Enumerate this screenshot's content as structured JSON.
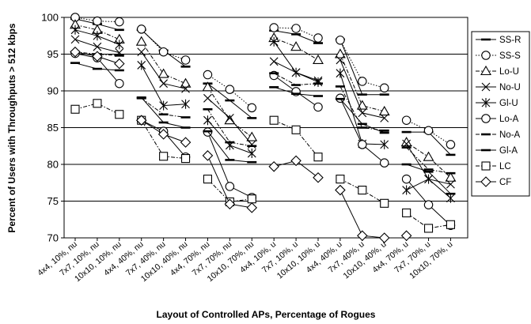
{
  "chart_data": {
    "type": "line",
    "xlabel": "Layout of Controlled APs, Percentage of Rogues",
    "ylabel": "Percent of Users with Throughputs > 512 kbps",
    "ylim": [
      70,
      100
    ],
    "yticks": [
      70,
      75,
      80,
      85,
      90,
      95,
      100
    ],
    "grid": "horizontal",
    "legend_position": "right",
    "categories": [
      "4x4, 10%, nu",
      "7x7, 10%, nu",
      "10x10, 10%, nu",
      "4x4, 40%, nu",
      "7x7, 40%, nu",
      "10x10, 40%, nu",
      "4x4, 70%, nu",
      "7x7, 70%, nu",
      "10x10, 70%, nu",
      "4x4, 10%, u",
      "7x7, 10%, u",
      "10x10, 10%, u",
      "4x4, 40%, u",
      "7x7, 40%, u",
      "10x10, 40%, u",
      "4x4, 70%, u",
      "7x7, 70%, u",
      "10x10, 70%, u"
    ],
    "groups": [
      [
        0,
        1,
        2
      ],
      [
        3,
        4,
        5
      ],
      [
        6,
        7,
        8
      ],
      [
        9,
        10,
        11
      ],
      [
        12,
        13,
        14
      ],
      [
        15,
        16,
        17
      ]
    ],
    "series": [
      {
        "name": "SS-R",
        "marker": "dash",
        "line": "solid",
        "values": [
          99.8,
          99.1,
          98.3,
          98.3,
          95.5,
          93.3,
          91.0,
          88.7,
          86.3,
          98.2,
          97.7,
          96.5,
          97.0,
          89.5,
          89.5,
          84.4,
          84.4,
          81.3
        ]
      },
      {
        "name": "SS-S",
        "marker": "circle",
        "line": "dotted",
        "values": [
          100.0,
          99.5,
          99.4,
          98.4,
          95.3,
          94.2,
          92.2,
          90.2,
          87.7,
          98.6,
          98.5,
          97.2,
          96.9,
          91.3,
          90.4,
          86.0,
          84.6,
          82.7
        ]
      },
      {
        "name": "Lo-U",
        "marker": "triangle",
        "line": "dashdot",
        "values": [
          99.0,
          98.3,
          97.0,
          96.7,
          92.3,
          91.0,
          90.5,
          86.0,
          83.7,
          97.2,
          96.0,
          94.2,
          95.0,
          88.0,
          87.2,
          83.0,
          81.0,
          78.2
        ]
      },
      {
        "name": "No-U",
        "marker": "x",
        "line": "solid",
        "values": [
          97.0,
          96.0,
          95.2,
          95.3,
          91.0,
          90.3,
          89.0,
          86.3,
          82.7,
          94.0,
          92.5,
          91.4,
          94.2,
          87.0,
          86.3,
          82.8,
          78.0,
          77.3
        ]
      },
      {
        "name": "Gl-U",
        "marker": "asterisk",
        "line": "solid",
        "values": [
          98.3,
          97.5,
          96.3,
          93.5,
          88.0,
          88.2,
          86.0,
          82.6,
          81.5,
          96.7,
          92.5,
          91.2,
          92.4,
          82.8,
          82.7,
          76.5,
          78.0,
          75.4
        ]
      },
      {
        "name": "Lo-A",
        "marker": "circle",
        "line": "solid",
        "values": [
          95.1,
          94.5,
          91.0,
          86.0,
          84.5,
          81.0,
          84.4,
          77.0,
          75.5,
          92.1,
          89.9,
          87.8,
          89.0,
          82.7,
          80.2,
          78.0,
          74.5,
          71.7
        ]
      },
      {
        "name": "No-A",
        "marker": "dash",
        "line": "dashdot",
        "values": [
          95.3,
          95.0,
          94.8,
          89.0,
          86.8,
          86.4,
          87.5,
          83.0,
          82.5,
          92.4,
          90.8,
          91.0,
          90.6,
          85.0,
          84.6,
          82.3,
          79.3,
          78.8
        ]
      },
      {
        "name": "Gl-A",
        "marker": "dash",
        "line": "solid",
        "values": [
          93.8,
          93.0,
          92.8,
          89.1,
          85.7,
          85.0,
          84.5,
          80.6,
          80.3,
          90.5,
          89.6,
          89.3,
          88.9,
          85.5,
          84.3,
          80.0,
          79.0,
          76.0
        ]
      },
      {
        "name": "LC",
        "marker": "square",
        "line": "dashdot",
        "values": [
          87.5,
          88.3,
          86.8,
          86.0,
          81.1,
          80.8,
          78.0,
          74.9,
          75.3,
          86.0,
          84.7,
          81.0,
          78.0,
          76.5,
          74.7,
          73.4,
          71.3,
          71.8
        ]
      },
      {
        "name": "CF",
        "marker": "diamond",
        "line": "solid",
        "values": [
          95.3,
          94.7,
          93.7,
          86.0,
          84.1,
          83.0,
          81.2,
          74.6,
          74.1,
          79.7,
          80.5,
          78.2,
          76.5,
          70.3,
          70.0,
          70.3,
          null,
          null
        ]
      }
    ]
  }
}
